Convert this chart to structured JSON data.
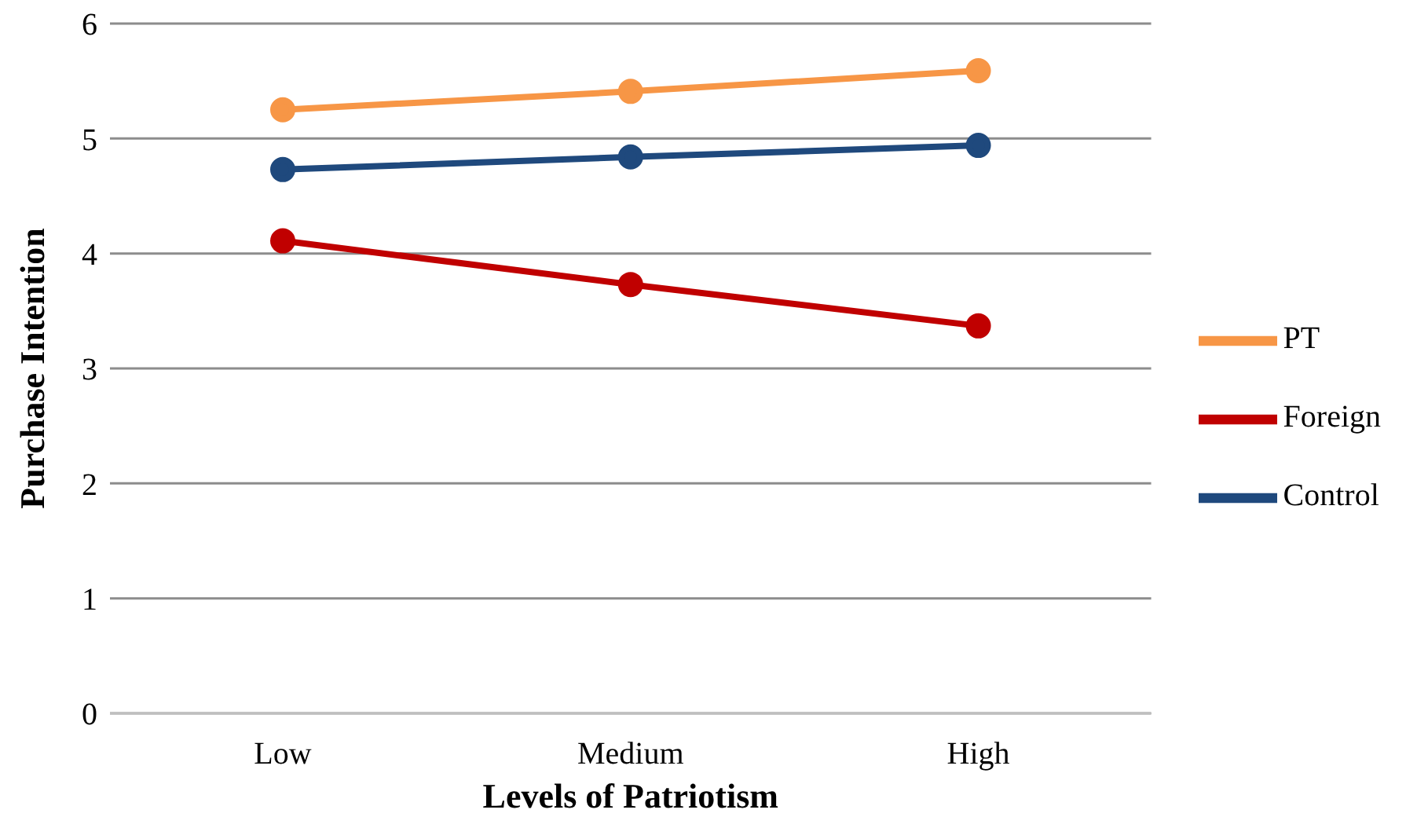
{
  "chart_data": {
    "type": "line",
    "xlabel": "Levels of Patriotism",
    "ylabel": "Purchase Intention",
    "categories": [
      "Low",
      "Medium",
      "High"
    ],
    "series": [
      {
        "name": "PT",
        "color": "#f79646",
        "values": [
          5.25,
          5.41,
          5.59
        ]
      },
      {
        "name": "Foreign",
        "color": "#c00000",
        "values": [
          4.11,
          3.73,
          3.37
        ]
      },
      {
        "name": "Control",
        "color": "#1f497d",
        "values": [
          4.73,
          4.84,
          4.94
        ]
      }
    ],
    "ylim": [
      0,
      6
    ],
    "yticks": [
      0,
      1,
      2,
      3,
      4,
      5,
      6
    ],
    "grid": "y",
    "legend": "right",
    "marker": "circle",
    "line_style": "solid"
  }
}
